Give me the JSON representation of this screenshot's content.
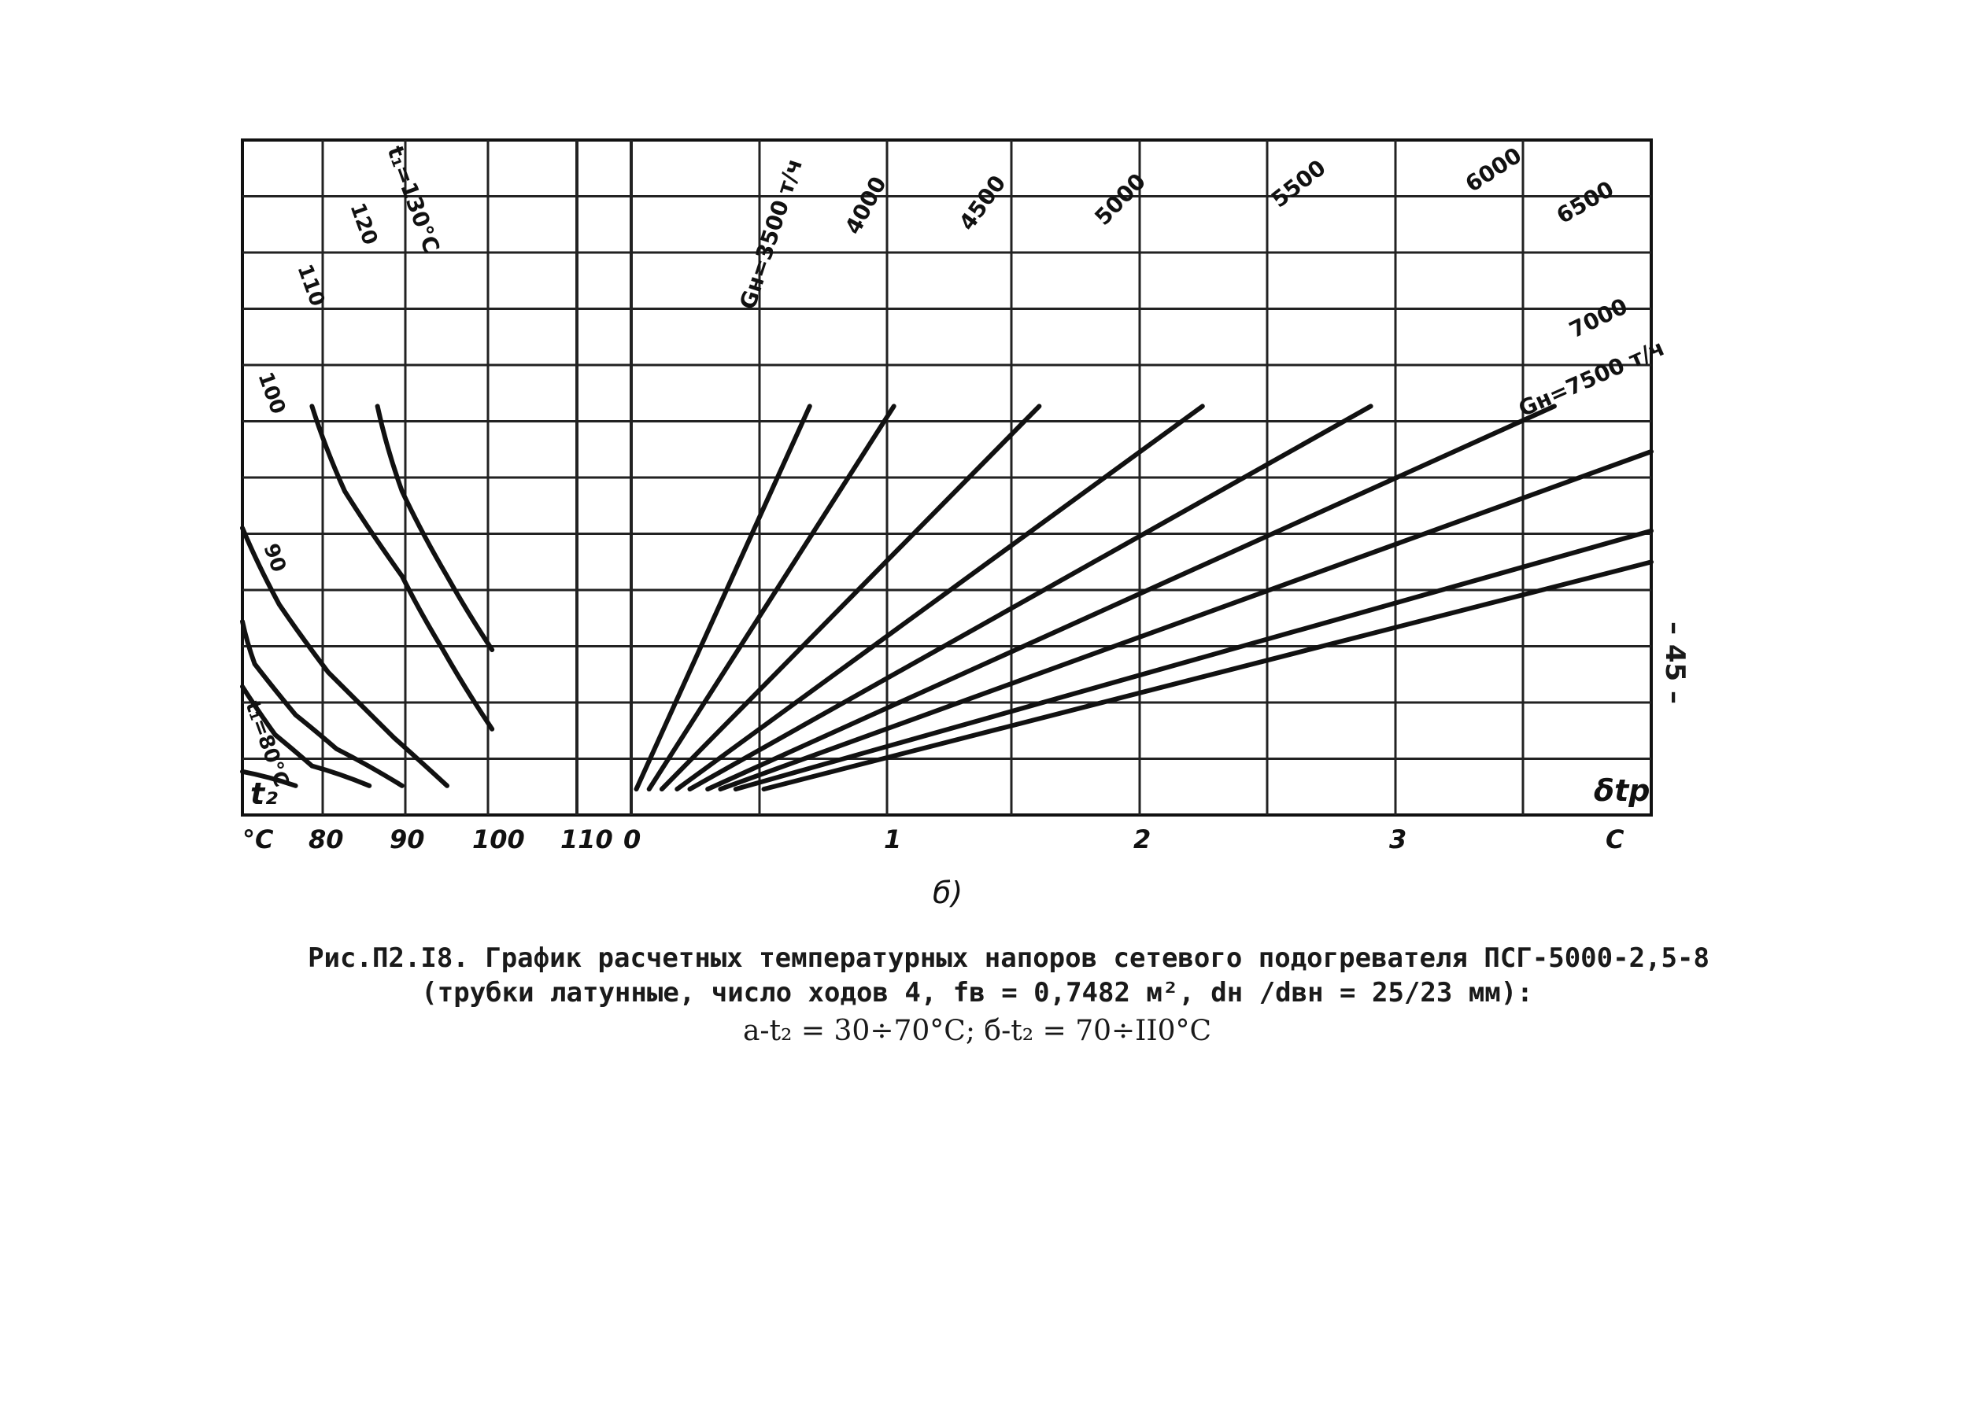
{
  "page_number": "– 45 –",
  "panel_label": "б)",
  "caption": {
    "line1": "Рис.П2.I8. График расчетных температурных напоров сетевого подогревателя ПСГ-5000-2,5-8",
    "line2": "(трубки латунные, число ходов 4, fв = 0,7482 м², dн /dвн = 25/23 мм):",
    "line3": "а-t₂ = 30÷70°С; б-t₂ = 70÷II0°С"
  },
  "chart_data": [
    {
      "type": "line",
      "panel": "left",
      "xlabel": "t₂",
      "x_unit": "°С",
      "x_ticks": [
        "80",
        "90",
        "100",
        "110"
      ],
      "xlim": [
        80,
        110
      ],
      "series": [
        {
          "name": "t₁=80°С",
          "points": [
            [
              79.5,
              0.35
            ],
            [
              86,
              0.1
            ]
          ]
        },
        {
          "name": "90",
          "points": [
            [
              79.5,
              1.85
            ],
            [
              83.5,
              1.0
            ],
            [
              88,
              0.45
            ],
            [
              95,
              0.1
            ]
          ]
        },
        {
          "name": "100",
          "points": [
            [
              79.5,
              3.0
            ],
            [
              81,
              2.25
            ],
            [
              86,
              1.35
            ],
            [
              91,
              0.75
            ],
            [
              99,
              0.1
            ]
          ]
        },
        {
          "name": "110",
          "points": [
            [
              79.5,
              4.65
            ],
            [
              84,
              3.3
            ],
            [
              90,
              2.1
            ],
            [
              98,
              0.95
            ],
            [
              104.5,
              0.1
            ]
          ]
        },
        {
          "name": "120",
          "points": [
            [
              88,
              6.8
            ],
            [
              92,
              5.3
            ],
            [
              99,
              3.8
            ],
            [
              104,
              2.5
            ],
            [
              110,
              1.1
            ]
          ]
        },
        {
          "name": "t₁=130°С",
          "points": [
            [
              96,
              6.8
            ],
            [
              99,
              5.3
            ],
            [
              104.5,
              3.8
            ],
            [
              110,
              2.5
            ]
          ]
        }
      ]
    },
    {
      "type": "line",
      "panel": "right",
      "xlabel": "δtр",
      "x_unit": "С",
      "x_ticks": [
        "0",
        "1",
        "2",
        "3"
      ],
      "xlim": [
        0,
        4
      ],
      "series": [
        {
          "name": "Gн=3500 т/ч",
          "points": [
            [
              0.02,
              0.04
            ],
            [
              0.7,
              6.8
            ]
          ]
        },
        {
          "name": "4000",
          "points": [
            [
              0.07,
              0.04
            ],
            [
              1.03,
              6.8
            ]
          ]
        },
        {
          "name": "4500",
          "points": [
            [
              0.12,
              0.04
            ],
            [
              1.6,
              6.8
            ]
          ]
        },
        {
          "name": "5000",
          "points": [
            [
              0.18,
              0.04
            ],
            [
              2.24,
              6.8
            ]
          ]
        },
        {
          "name": "5500",
          "points": [
            [
              0.23,
              0.04
            ],
            [
              2.9,
              6.8
            ]
          ]
        },
        {
          "name": "6000",
          "points": [
            [
              0.3,
              0.04
            ],
            [
              3.62,
              6.8
            ]
          ]
        },
        {
          "name": "6500",
          "points": [
            [
              0.35,
              0.04
            ],
            [
              4.0,
              6.0
            ]
          ]
        },
        {
          "name": "7000",
          "points": [
            [
              0.41,
              0.04
            ],
            [
              4.0,
              4.6
            ]
          ]
        },
        {
          "name": "Gн=7500 т/ч",
          "points": [
            [
              0.52,
              0.04
            ],
            [
              4.0,
              4.05
            ]
          ]
        }
      ]
    }
  ]
}
